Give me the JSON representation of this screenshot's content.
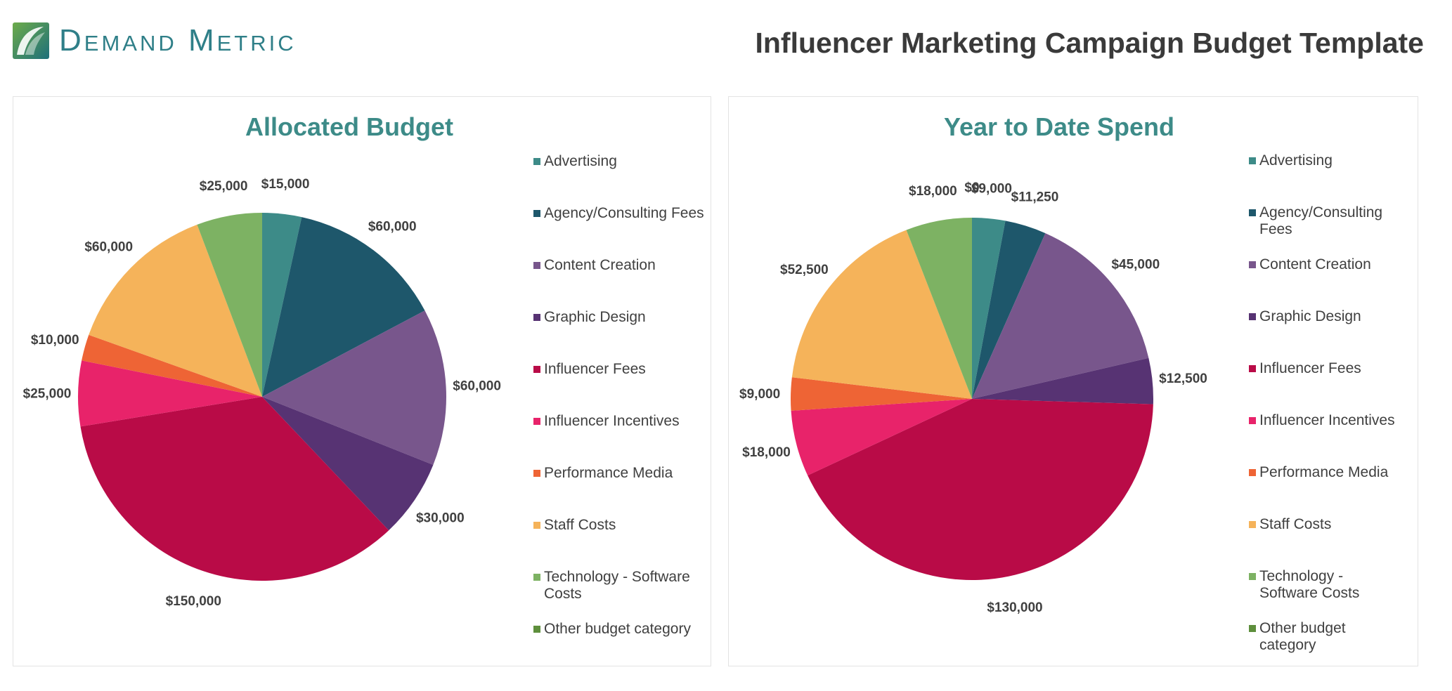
{
  "header": {
    "logo_text": "Demand Metric",
    "title": "Influencer Marketing Campaign Budget Template"
  },
  "colors": {
    "Advertising": "#3d8b88",
    "Agency/Consulting Fees": "#1e576b",
    "Content Creation": "#78568c",
    "Graphic Design": "#573373",
    "Influencer Fees": "#b90b47",
    "Influencer Incentives": "#e8236a",
    "Performance Media": "#ee6435",
    "Staff Costs": "#f5b35a",
    "Technology - Software Costs": "#7db263",
    "Other budget category": "#5e8f3c"
  },
  "chart_data": [
    {
      "type": "pie",
      "title": "Allocated Budget",
      "legend_position": "right",
      "categories": [
        "Advertising",
        "Agency/Consulting Fees",
        "Content Creation",
        "Graphic Design",
        "Influencer Fees",
        "Influencer Incentives",
        "Performance Media",
        "Staff Costs",
        "Technology - Software Costs",
        "Other budget category"
      ],
      "values": [
        15000,
        60000,
        60000,
        30000,
        150000,
        25000,
        10000,
        60000,
        25000,
        0
      ],
      "data_labels": [
        "$15,000",
        "$60,000",
        "$60,000",
        "$30,000",
        "$150,000",
        "$25,000",
        "$10,000",
        "$60,000",
        "$25,000",
        ""
      ]
    },
    {
      "type": "pie",
      "title": "Year to Date Spend",
      "legend_position": "right",
      "categories": [
        "Advertising",
        "Agency/Consulting Fees",
        "Content Creation",
        "Graphic Design",
        "Influencer Fees",
        "Influencer Incentives",
        "Performance Media",
        "Staff Costs",
        "Technology - Software Costs",
        "Other budget category"
      ],
      "values": [
        9000,
        11250,
        45000,
        12500,
        130000,
        18000,
        9000,
        52500,
        18000,
        0
      ],
      "data_labels": [
        "$9,000",
        "$11,250",
        "$45,000",
        "$12,500",
        "$130,000",
        "$18,000",
        "$9,000",
        "$52,500",
        "$18,000",
        "$0"
      ]
    }
  ]
}
